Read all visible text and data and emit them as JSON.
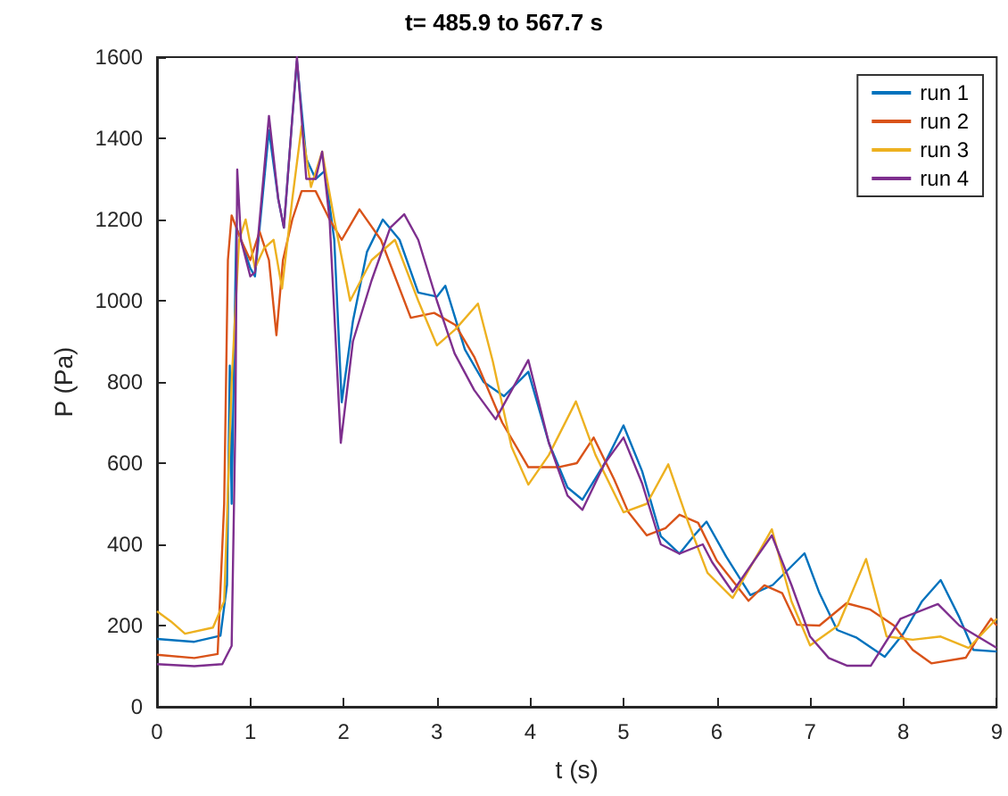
{
  "chart_data": {
    "type": "line",
    "title": "t= 485.9 to 567.7 s",
    "xlabel": "t (s)",
    "ylabel": "P (Pa)",
    "xlim": [
      0,
      9
    ],
    "xticks": [
      0,
      1,
      2,
      3,
      4,
      5,
      6,
      7,
      8,
      9
    ],
    "ylim": [
      0,
      1600
    ],
    "yticks": [
      0,
      200,
      400,
      600,
      800,
      1000,
      1200,
      1400,
      1600
    ],
    "grid": false,
    "legend": "top right",
    "marker": "none",
    "line_style": "solid",
    "series": [
      {
        "name": "run 1",
        "color": "#0072bd",
        "x": [
          0,
          0.4,
          0.68,
          0.75,
          0.78,
          0.8,
          0.85,
          0.9,
          1.0,
          1.05,
          1.2,
          1.3,
          1.36,
          1.45,
          1.5,
          1.6,
          1.7,
          1.8,
          1.9,
          1.98,
          2.1,
          2.25,
          2.42,
          2.6,
          2.8,
          3.0,
          3.09,
          3.3,
          3.5,
          3.72,
          3.98,
          4.2,
          4.4,
          4.56,
          4.8,
          5.0,
          5.2,
          5.4,
          5.6,
          5.75,
          5.89,
          6.1,
          6.36,
          6.6,
          6.94,
          7.1,
          7.29,
          7.5,
          7.8,
          8.0,
          8.2,
          8.4,
          8.6,
          8.75,
          9.0
        ],
        "values": [
          167,
          160,
          175,
          300,
          840,
          500,
          1180,
          1150,
          1080,
          1060,
          1420,
          1250,
          1180,
          1450,
          1590,
          1350,
          1300,
          1320,
          1150,
          750,
          950,
          1120,
          1200,
          1150,
          1020,
          1010,
          1037,
          880,
          800,
          765,
          825,
          650,
          540,
          510,
          600,
          693,
          580,
          420,
          377,
          420,
          456,
          370,
          275,
          300,
          378,
          280,
          189,
          170,
          123,
          180,
          260,
          312,
          220,
          140,
          136
        ]
      },
      {
        "name": "run 2",
        "color": "#d95319",
        "x": [
          0,
          0.4,
          0.65,
          0.72,
          0.76,
          0.8,
          0.9,
          1.0,
          1.1,
          1.2,
          1.28,
          1.35,
          1.45,
          1.55,
          1.7,
          1.85,
          1.98,
          2.17,
          2.4,
          2.72,
          2.97,
          3.2,
          3.4,
          3.7,
          3.98,
          4.3,
          4.5,
          4.68,
          4.9,
          5.05,
          5.25,
          5.45,
          5.6,
          5.8,
          6.0,
          6.34,
          6.51,
          6.7,
          6.86,
          7.1,
          7.39,
          7.64,
          7.9,
          8.1,
          8.3,
          8.67,
          8.8,
          8.94,
          9.0
        ],
        "values": [
          128,
          120,
          130,
          500,
          1100,
          1210,
          1150,
          1100,
          1170,
          1100,
          915,
          1100,
          1200,
          1270,
          1270,
          1200,
          1150,
          1225,
          1150,
          958,
          970,
          940,
          862,
          700,
          590,
          590,
          600,
          663,
          560,
          480,
          422,
          440,
          473,
          453,
          360,
          261,
          299,
          280,
          202,
          200,
          255,
          240,
          200,
          140,
          107,
          121,
          170,
          217,
          200
        ]
      },
      {
        "name": "run 3",
        "color": "#edb120",
        "x": [
          0,
          0.15,
          0.3,
          0.6,
          0.72,
          0.8,
          0.88,
          0.95,
          1.05,
          1.15,
          1.25,
          1.34,
          1.45,
          1.55,
          1.65,
          1.77,
          1.9,
          2.07,
          2.3,
          2.55,
          2.8,
          3.0,
          3.2,
          3.44,
          3.6,
          3.8,
          3.98,
          4.2,
          4.49,
          4.7,
          5.0,
          5.25,
          5.48,
          5.7,
          5.9,
          6.17,
          6.4,
          6.59,
          6.8,
          7.0,
          7.3,
          7.6,
          7.82,
          8.1,
          8.4,
          8.7,
          9.0
        ],
        "values": [
          235,
          210,
          180,
          195,
          260,
          800,
          1150,
          1200,
          1080,
          1130,
          1150,
          1030,
          1250,
          1430,
          1280,
          1367,
          1200,
          1000,
          1100,
          1150,
          1000,
          890,
          930,
          993,
          850,
          640,
          547,
          620,
          752,
          620,
          479,
          500,
          597,
          450,
          330,
          268,
          360,
          437,
          260,
          151,
          200,
          364,
          173,
          165,
          173,
          145,
          217
        ]
      },
      {
        "name": "run 4",
        "color": "#7e2f8e",
        "x": [
          0,
          0.4,
          0.7,
          0.8,
          0.84,
          0.86,
          0.9,
          1.0,
          1.05,
          1.2,
          1.3,
          1.36,
          1.45,
          1.5,
          1.6,
          1.7,
          1.77,
          1.85,
          1.97,
          2.1,
          2.3,
          2.5,
          2.65,
          2.8,
          3.0,
          3.19,
          3.4,
          3.63,
          3.98,
          4.2,
          4.4,
          4.56,
          4.8,
          5.0,
          5.2,
          5.4,
          5.6,
          5.85,
          5.95,
          6.17,
          6.4,
          6.59,
          6.8,
          7.0,
          7.2,
          7.4,
          7.65,
          7.97,
          8.37,
          8.6,
          9.0
        ],
        "values": [
          105,
          100,
          105,
          150,
          700,
          1323,
          1150,
          1060,
          1070,
          1455,
          1250,
          1180,
          1450,
          1600,
          1300,
          1300,
          1367,
          1200,
          650,
          900,
          1050,
          1180,
          1213,
          1150,
          1000,
          870,
          780,
          708,
          854,
          650,
          520,
          485,
          600,
          663,
          550,
          400,
          377,
          400,
          356,
          283,
          360,
          422,
          300,
          173,
          120,
          101,
          101,
          217,
          253,
          200,
          145
        ]
      }
    ]
  }
}
